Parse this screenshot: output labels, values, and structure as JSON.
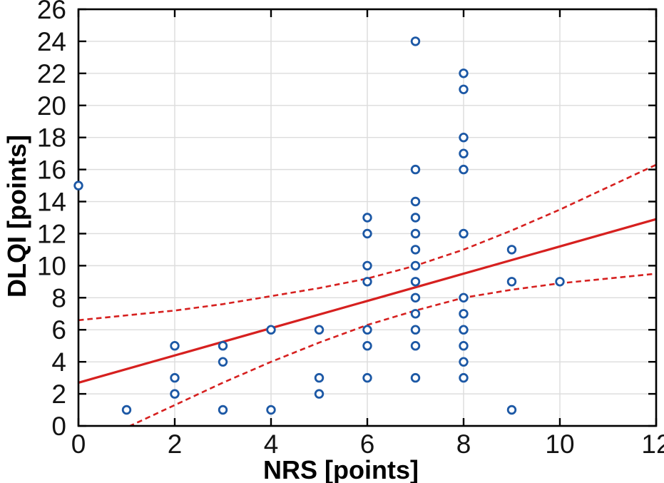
{
  "chart_data": {
    "type": "scatter",
    "title": "",
    "xlabel": "NRS [points]",
    "ylabel": "DLQI [points]",
    "xlim": [
      0,
      12
    ],
    "ylim": [
      0,
      26
    ],
    "xticks": [
      0,
      2,
      4,
      6,
      8,
      10,
      12
    ],
    "yticks": [
      0,
      2,
      4,
      6,
      8,
      10,
      12,
      14,
      16,
      18,
      20,
      22,
      24,
      26
    ],
    "grid": true,
    "legend": "none",
    "colors": {
      "marker": "#1c58a5",
      "line": "#d6201f",
      "grid": "#dcdcdc",
      "frame": "#000000",
      "background": "#ffffff"
    },
    "series": [
      {
        "name": "observations",
        "type": "scatter",
        "marker": "open-circle",
        "color": "#1c58a5",
        "points": [
          [
            0,
            15
          ],
          [
            1,
            1
          ],
          [
            2,
            5
          ],
          [
            2,
            3
          ],
          [
            2,
            2
          ],
          [
            3,
            5
          ],
          [
            3,
            4
          ],
          [
            3,
            1
          ],
          [
            4,
            6
          ],
          [
            4,
            1
          ],
          [
            5,
            6
          ],
          [
            5,
            3
          ],
          [
            5,
            2
          ],
          [
            6,
            13
          ],
          [
            6,
            12
          ],
          [
            6,
            10
          ],
          [
            6,
            9
          ],
          [
            6,
            6
          ],
          [
            6,
            5
          ],
          [
            6,
            3
          ],
          [
            7,
            24
          ],
          [
            7,
            16
          ],
          [
            7,
            14
          ],
          [
            7,
            13
          ],
          [
            7,
            12
          ],
          [
            7,
            11
          ],
          [
            7,
            10
          ],
          [
            7,
            9
          ],
          [
            7,
            8
          ],
          [
            7,
            7
          ],
          [
            7,
            6
          ],
          [
            7,
            5
          ],
          [
            7,
            3
          ],
          [
            8,
            22
          ],
          [
            8,
            21
          ],
          [
            8,
            18
          ],
          [
            8,
            17
          ],
          [
            8,
            16
          ],
          [
            8,
            12
          ],
          [
            8,
            8
          ],
          [
            8,
            7
          ],
          [
            8,
            6
          ],
          [
            8,
            5
          ],
          [
            8,
            4
          ],
          [
            8,
            3
          ],
          [
            9,
            11
          ],
          [
            9,
            9
          ],
          [
            9,
            1
          ],
          [
            10,
            9
          ]
        ]
      },
      {
        "name": "regression",
        "type": "line",
        "style": "solid",
        "color": "#d6201f",
        "points": [
          [
            0,
            2.7
          ],
          [
            12,
            12.9
          ]
        ]
      },
      {
        "name": "ci-upper",
        "type": "line",
        "style": "dashed",
        "color": "#d6201f",
        "points": [
          [
            0,
            6.6
          ],
          [
            1,
            6.9
          ],
          [
            2,
            7.2
          ],
          [
            3,
            7.6
          ],
          [
            4,
            8.1
          ],
          [
            5,
            8.6
          ],
          [
            6,
            9.2
          ],
          [
            7,
            10.0
          ],
          [
            8,
            11.0
          ],
          [
            9,
            12.2
          ],
          [
            10,
            13.5
          ],
          [
            11,
            14.9
          ],
          [
            12,
            16.3
          ]
        ]
      },
      {
        "name": "ci-lower",
        "type": "line",
        "style": "dashed",
        "color": "#d6201f",
        "points": [
          [
            0,
            -1.1
          ],
          [
            1,
            -0.1
          ],
          [
            2,
            1.3
          ],
          [
            3,
            2.7
          ],
          [
            4,
            4.0
          ],
          [
            5,
            5.2
          ],
          [
            6,
            6.3
          ],
          [
            7,
            7.2
          ],
          [
            8,
            8.0
          ],
          [
            9,
            8.5
          ],
          [
            10,
            8.9
          ],
          [
            11,
            9.2
          ],
          [
            12,
            9.5
          ]
        ]
      }
    ]
  }
}
